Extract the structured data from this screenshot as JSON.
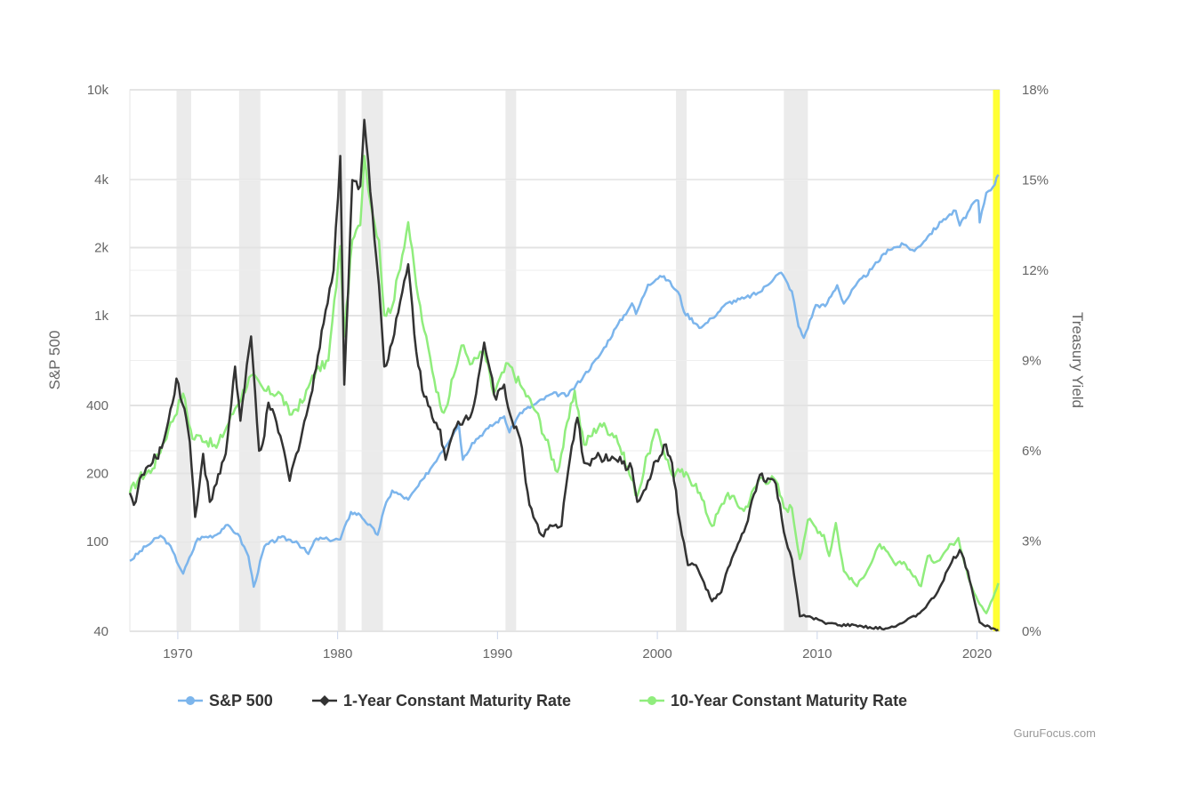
{
  "chart_data": {
    "type": "line",
    "title": "",
    "x_axis": {
      "type": "date",
      "range": [
        "1967-01-01",
        "2021-06-01"
      ],
      "ticks": [
        "1970",
        "1980",
        "1990",
        "2000",
        "2010",
        "2020"
      ]
    },
    "y_axis_left": {
      "title": "S&P 500",
      "scale": "log",
      "range": [
        40,
        10000
      ],
      "ticks": [
        {
          "value": 40,
          "label": "40"
        },
        {
          "value": 100,
          "label": "100"
        },
        {
          "value": 200,
          "label": "200"
        },
        {
          "value": 400,
          "label": "400"
        },
        {
          "value": 1000,
          "label": "1k"
        },
        {
          "value": 2000,
          "label": "2k"
        },
        {
          "value": 4000,
          "label": "4k"
        },
        {
          "value": 10000,
          "label": "10k"
        }
      ]
    },
    "y_axis_right": {
      "title": "Treasury Yield",
      "scale": "linear",
      "unit": "%",
      "range": [
        0,
        18
      ],
      "ticks": [
        {
          "value": 0,
          "label": "0%"
        },
        {
          "value": 3,
          "label": "3%"
        },
        {
          "value": 6,
          "label": "6%"
        },
        {
          "value": 9,
          "label": "9%"
        },
        {
          "value": 12,
          "label": "12%"
        },
        {
          "value": 15,
          "label": "15%"
        },
        {
          "value": 18,
          "label": "18%"
        }
      ]
    },
    "recessions": [
      [
        "1969-12",
        "1970-11"
      ],
      [
        "1973-11",
        "1975-03"
      ],
      [
        "1980-01",
        "1980-07"
      ],
      [
        "1981-07",
        "1982-11"
      ],
      [
        "1990-07",
        "1991-03"
      ],
      [
        "2001-03",
        "2001-11"
      ],
      [
        "2007-12",
        "2009-06"
      ]
    ],
    "highlight": {
      "from": "2021-01",
      "to": "2021-06",
      "color": "#ffff33"
    },
    "series": [
      {
        "name": "S&P 500",
        "axis": "left",
        "color": "#7cb5ec",
        "points": [
          [
            "1967-01",
            82
          ],
          [
            "1968-01",
            95
          ],
          [
            "1968-12",
            106
          ],
          [
            "1969-06",
            98
          ],
          [
            "1970-05",
            72
          ],
          [
            "1971-04",
            103
          ],
          [
            "1972-06",
            107
          ],
          [
            "1973-01",
            118
          ],
          [
            "1973-10",
            108
          ],
          [
            "1974-06",
            86
          ],
          [
            "1974-10",
            63
          ],
          [
            "1975-06",
            95
          ],
          [
            "1976-06",
            104
          ],
          [
            "1977-06",
            100
          ],
          [
            "1978-03",
            88
          ],
          [
            "1978-09",
            103
          ],
          [
            "1979-06",
            102
          ],
          [
            "1980-03",
            102
          ],
          [
            "1980-11",
            135
          ],
          [
            "1981-06",
            131
          ],
          [
            "1982-07",
            107
          ],
          [
            "1982-12",
            140
          ],
          [
            "1983-06",
            168
          ],
          [
            "1984-06",
            153
          ],
          [
            "1985-06",
            191
          ],
          [
            "1986-06",
            245
          ],
          [
            "1987-08",
            329
          ],
          [
            "1987-11",
            230
          ],
          [
            "1988-06",
            273
          ],
          [
            "1989-06",
            317
          ],
          [
            "1990-06",
            358
          ],
          [
            "1990-10",
            304
          ],
          [
            "1991-06",
            371
          ],
          [
            "1992-06",
            408
          ],
          [
            "1993-06",
            450
          ],
          [
            "1994-06",
            444
          ],
          [
            "1995-06",
            544
          ],
          [
            "1996-06",
            670
          ],
          [
            "1997-06",
            885
          ],
          [
            "1998-06",
            1133
          ],
          [
            "1998-09",
            1017
          ],
          [
            "1999-06",
            1372
          ],
          [
            "2000-03",
            1498
          ],
          [
            "2000-09",
            1436
          ],
          [
            "2001-06",
            1224
          ],
          [
            "2001-09",
            1040
          ],
          [
            "2002-07",
            911
          ],
          [
            "2002-10",
            885
          ],
          [
            "2003-06",
            975
          ],
          [
            "2004-06",
            1140
          ],
          [
            "2005-06",
            1191
          ],
          [
            "2006-06",
            1270
          ],
          [
            "2007-06",
            1503
          ],
          [
            "2007-10",
            1549
          ],
          [
            "2008-06",
            1280
          ],
          [
            "2008-11",
            896
          ],
          [
            "2009-03",
            797
          ],
          [
            "2009-12",
            1115
          ],
          [
            "2010-07",
            1101
          ],
          [
            "2011-04",
            1363
          ],
          [
            "2011-09",
            1131
          ],
          [
            "2012-06",
            1362
          ],
          [
            "2013-06",
            1606
          ],
          [
            "2014-06",
            1960
          ],
          [
            "2015-06",
            2063
          ],
          [
            "2016-02",
            1932
          ],
          [
            "2016-12",
            2238
          ],
          [
            "2017-12",
            2674
          ],
          [
            "2018-09",
            2914
          ],
          [
            "2018-12",
            2507
          ],
          [
            "2019-12",
            3231
          ],
          [
            "2020-02",
            3226
          ],
          [
            "2020-03",
            2585
          ],
          [
            "2020-08",
            3500
          ],
          [
            "2021-01",
            3714
          ],
          [
            "2021-05",
            4204
          ]
        ]
      },
      {
        "name": "1-Year Constant Maturity Rate",
        "axis": "right",
        "color": "#333333",
        "points": [
          [
            "1967-01",
            4.6
          ],
          [
            "1967-04",
            4.2
          ],
          [
            "1967-10",
            5.2
          ],
          [
            "1968-06",
            5.6
          ],
          [
            "1969-01",
            6.1
          ],
          [
            "1969-06",
            7.0
          ],
          [
            "1969-12",
            8.4
          ],
          [
            "1970-06",
            7.4
          ],
          [
            "1970-10",
            6.3
          ],
          [
            "1971-02",
            3.8
          ],
          [
            "1971-08",
            5.9
          ],
          [
            "1972-01",
            4.3
          ],
          [
            "1972-06",
            4.9
          ],
          [
            "1973-01",
            5.9
          ],
          [
            "1973-08",
            8.8
          ],
          [
            "1973-12",
            7.0
          ],
          [
            "1974-08",
            9.8
          ],
          [
            "1975-02",
            6.0
          ],
          [
            "1975-06",
            6.5
          ],
          [
            "1975-09",
            7.6
          ],
          [
            "1976-06",
            6.5
          ],
          [
            "1977-01",
            5.0
          ],
          [
            "1977-06",
            5.9
          ],
          [
            "1978-06",
            8.0
          ],
          [
            "1979-01",
            10.0
          ],
          [
            "1979-10",
            12.0
          ],
          [
            "1980-03",
            15.8
          ],
          [
            "1980-06",
            8.2
          ],
          [
            "1980-12",
            15.0
          ],
          [
            "1981-06",
            14.8
          ],
          [
            "1981-09",
            17.0
          ],
          [
            "1982-03",
            14.0
          ],
          [
            "1982-08",
            11.5
          ],
          [
            "1982-12",
            8.8
          ],
          [
            "1983-06",
            9.6
          ],
          [
            "1984-06",
            12.2
          ],
          [
            "1984-12",
            9.3
          ],
          [
            "1985-06",
            7.8
          ],
          [
            "1986-06",
            6.7
          ],
          [
            "1986-10",
            5.7
          ],
          [
            "1987-06",
            6.8
          ],
          [
            "1988-06",
            7.3
          ],
          [
            "1989-03",
            9.6
          ],
          [
            "1989-12",
            7.7
          ],
          [
            "1990-06",
            8.2
          ],
          [
            "1990-12",
            7.0
          ],
          [
            "1991-06",
            6.4
          ],
          [
            "1992-01",
            4.2
          ],
          [
            "1992-10",
            3.2
          ],
          [
            "1993-06",
            3.5
          ],
          [
            "1994-01",
            3.5
          ],
          [
            "1994-06",
            5.3
          ],
          [
            "1995-01",
            7.1
          ],
          [
            "1995-06",
            5.6
          ],
          [
            "1996-06",
            5.8
          ],
          [
            "1997-06",
            5.7
          ],
          [
            "1998-06",
            5.4
          ],
          [
            "1998-10",
            4.3
          ],
          [
            "1999-06",
            5.0
          ],
          [
            "2000-06",
            6.2
          ],
          [
            "2000-12",
            5.6
          ],
          [
            "2001-06",
            3.6
          ],
          [
            "2001-12",
            2.2
          ],
          [
            "2002-06",
            2.2
          ],
          [
            "2003-06",
            1.0
          ],
          [
            "2004-01",
            1.3
          ],
          [
            "2004-06",
            2.1
          ],
          [
            "2005-06",
            3.3
          ],
          [
            "2006-06",
            5.2
          ],
          [
            "2007-06",
            4.9
          ],
          [
            "2007-12",
            3.3
          ],
          [
            "2008-06",
            2.4
          ],
          [
            "2008-12",
            0.5
          ],
          [
            "2009-06",
            0.5
          ],
          [
            "2010-06",
            0.3
          ],
          [
            "2011-06",
            0.2
          ],
          [
            "2012-06",
            0.2
          ],
          [
            "2013-06",
            0.1
          ],
          [
            "2014-06",
            0.1
          ],
          [
            "2015-06",
            0.3
          ],
          [
            "2016-06",
            0.6
          ],
          [
            "2017-06",
            1.2
          ],
          [
            "2018-06",
            2.3
          ],
          [
            "2018-12",
            2.7
          ],
          [
            "2019-06",
            2.0
          ],
          [
            "2020-03",
            0.3
          ],
          [
            "2020-06",
            0.2
          ],
          [
            "2021-01",
            0.1
          ],
          [
            "2021-05",
            0.05
          ]
        ]
      },
      {
        "name": "10-Year Constant Maturity Rate",
        "axis": "right",
        "color": "#90ed7d",
        "points": [
          [
            "1967-01",
            4.6
          ],
          [
            "1967-08",
            5.1
          ],
          [
            "1968-06",
            5.4
          ],
          [
            "1969-06",
            6.7
          ],
          [
            "1970-05",
            7.9
          ],
          [
            "1970-12",
            6.4
          ],
          [
            "1971-06",
            6.5
          ],
          [
            "1972-06",
            6.1
          ],
          [
            "1973-08",
            7.4
          ],
          [
            "1974-08",
            8.5
          ],
          [
            "1975-06",
            8.0
          ],
          [
            "1976-06",
            7.9
          ],
          [
            "1977-01",
            7.2
          ],
          [
            "1977-12",
            7.7
          ],
          [
            "1978-06",
            8.5
          ],
          [
            "1979-06",
            9.0
          ],
          [
            "1980-03",
            12.8
          ],
          [
            "1980-06",
            9.8
          ],
          [
            "1980-12",
            13.0
          ],
          [
            "1981-06",
            13.5
          ],
          [
            "1981-09",
            15.8
          ],
          [
            "1982-03",
            13.9
          ],
          [
            "1982-08",
            13.0
          ],
          [
            "1982-12",
            10.5
          ],
          [
            "1983-06",
            10.8
          ],
          [
            "1984-06",
            13.6
          ],
          [
            "1984-12",
            11.5
          ],
          [
            "1985-06",
            10.0
          ],
          [
            "1986-06",
            7.5
          ],
          [
            "1986-10",
            7.4
          ],
          [
            "1987-10",
            9.5
          ],
          [
            "1988-06",
            8.9
          ],
          [
            "1989-03",
            9.3
          ],
          [
            "1989-10",
            7.9
          ],
          [
            "1990-09",
            8.9
          ],
          [
            "1991-06",
            8.2
          ],
          [
            "1992-06",
            7.3
          ],
          [
            "1993-10",
            5.3
          ],
          [
            "1994-11",
            8.0
          ],
          [
            "1995-06",
            6.2
          ],
          [
            "1996-06",
            6.9
          ],
          [
            "1997-06",
            6.5
          ],
          [
            "1998-10",
            4.5
          ],
          [
            "1999-06",
            5.9
          ],
          [
            "2000-01",
            6.7
          ],
          [
            "2000-12",
            5.2
          ],
          [
            "2001-06",
            5.3
          ],
          [
            "2002-06",
            4.9
          ],
          [
            "2003-06",
            3.5
          ],
          [
            "2004-06",
            4.6
          ],
          [
            "2005-06",
            4.0
          ],
          [
            "2006-06",
            5.1
          ],
          [
            "2007-06",
            5.0
          ],
          [
            "2007-12",
            4.1
          ],
          [
            "2008-06",
            4.1
          ],
          [
            "2008-12",
            2.4
          ],
          [
            "2009-06",
            3.7
          ],
          [
            "2010-06",
            3.2
          ],
          [
            "2010-10",
            2.5
          ],
          [
            "2011-03",
            3.6
          ],
          [
            "2011-09",
            2.0
          ],
          [
            "2012-07",
            1.5
          ],
          [
            "2013-06",
            2.3
          ],
          [
            "2013-12",
            2.9
          ],
          [
            "2014-12",
            2.2
          ],
          [
            "2015-06",
            2.3
          ],
          [
            "2016-07",
            1.5
          ],
          [
            "2016-12",
            2.5
          ],
          [
            "2017-06",
            2.3
          ],
          [
            "2018-06",
            2.9
          ],
          [
            "2018-11",
            3.1
          ],
          [
            "2019-08",
            1.6
          ],
          [
            "2020-03",
            0.9
          ],
          [
            "2020-08",
            0.6
          ],
          [
            "2021-01",
            1.1
          ],
          [
            "2021-05",
            1.6
          ]
        ]
      }
    ],
    "legend": {
      "placement": "bottom-center",
      "items": [
        "S&P 500",
        "1-Year Constant Maturity Rate",
        "10-Year Constant Maturity Rate"
      ]
    },
    "credits": "GuruFocus.com"
  }
}
